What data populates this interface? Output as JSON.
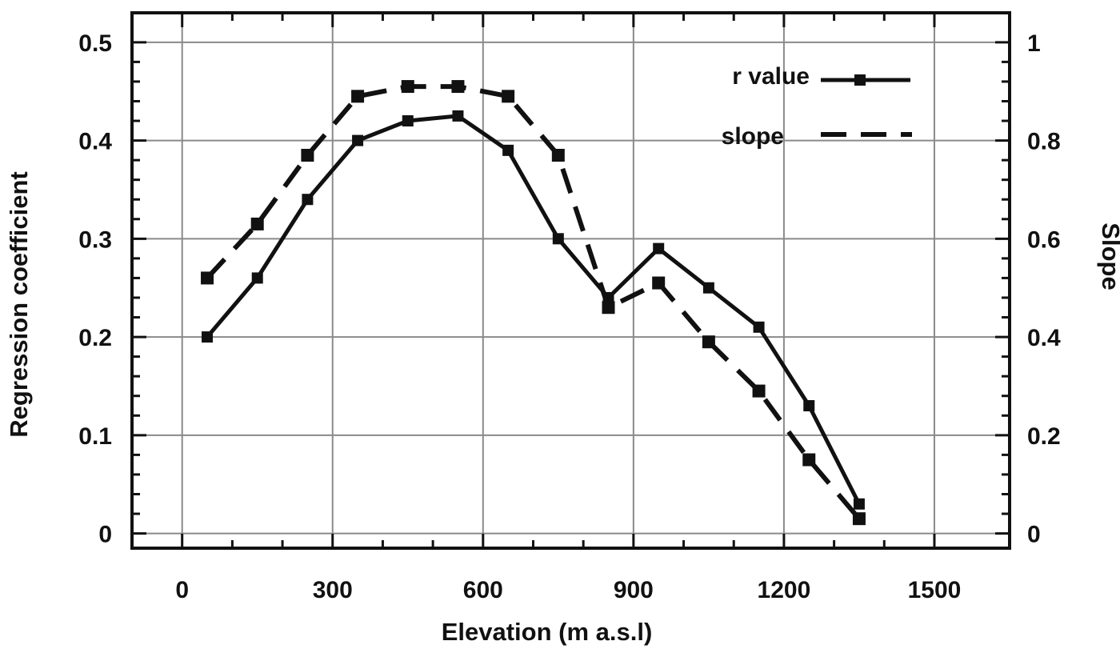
{
  "chart_data": {
    "type": "line",
    "title": "",
    "xlabel": "Elevation (m  a.s.l)",
    "ylabel": "Regression coefficient",
    "y2label": "Slope",
    "xlim": [
      -100,
      1650
    ],
    "ylim": [
      -0.015,
      0.53
    ],
    "y2lim": [
      -0.03,
      1.06
    ],
    "x_ticks": [
      0,
      300,
      600,
      900,
      1200,
      1500
    ],
    "y_ticks": [
      0,
      0.1,
      0.2,
      0.3,
      0.4,
      0.5
    ],
    "y2_ticks": [
      0,
      0.2,
      0.4,
      0.6,
      0.8,
      1
    ],
    "y_tick_labels": [
      "0",
      "0.1",
      "0.2",
      "0.3",
      "0.4",
      "0.5"
    ],
    "y2_tick_labels": [
      "0",
      "0.2",
      "0.4",
      "0.6",
      "0.8",
      "1"
    ],
    "grid": true,
    "legend_position": "top-right",
    "series": [
      {
        "name": "r  value",
        "axis": "left",
        "style": "solid",
        "x": [
          50,
          150,
          250,
          350,
          450,
          550,
          650,
          750,
          850,
          950,
          1050,
          1150,
          1250,
          1350
        ],
        "y": [
          0.2,
          0.26,
          0.34,
          0.4,
          0.42,
          0.425,
          0.39,
          0.3,
          0.24,
          0.29,
          0.25,
          0.21,
          0.13,
          0.03
        ]
      },
      {
        "name": "slope",
        "axis": "right",
        "style": "dashed",
        "x": [
          50,
          150,
          250,
          350,
          450,
          550,
          650,
          750,
          850,
          950,
          1050,
          1150,
          1250,
          1350
        ],
        "y": [
          0.52,
          0.63,
          0.77,
          0.89,
          0.91,
          0.91,
          0.89,
          0.77,
          0.46,
          0.51,
          0.39,
          0.29,
          0.15,
          0.03
        ]
      }
    ]
  }
}
